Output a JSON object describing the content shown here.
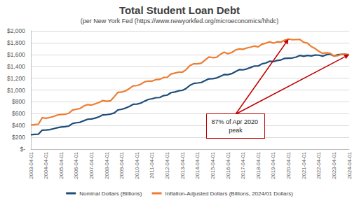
{
  "chart_data": {
    "type": "line",
    "title": "Total Student Loan Debt",
    "subtitle": "(per New York Fed (https://www.newyorkfed.org/microeconomics/hhdc)",
    "annotation": "87% of Apr 2020 peak",
    "categories": [
      "2003-04-01",
      null,
      null,
      null,
      "2004-04-01",
      null,
      null,
      null,
      "2005-04-01",
      null,
      null,
      null,
      "2006-04-01",
      null,
      null,
      null,
      "2007-04-01",
      null,
      null,
      null,
      "2008-04-01",
      null,
      null,
      null,
      "2009-04-01",
      null,
      null,
      null,
      "2010-04-01",
      null,
      null,
      null,
      "2011-04-01",
      null,
      null,
      null,
      "2012-04-01",
      null,
      null,
      null,
      "2013-04-01",
      null,
      null,
      null,
      "2014-04-01",
      null,
      null,
      null,
      "2015-04-01",
      null,
      null,
      null,
      "2016-04-01",
      null,
      null,
      null,
      "2017-04-01",
      null,
      null,
      null,
      "2018-04-01",
      null,
      null,
      null,
      "2019-04-01",
      null,
      null,
      null,
      "2020-04-01",
      null,
      null,
      null,
      "2021-04-01",
      null,
      null,
      null,
      "2022-04-01",
      null,
      null,
      null,
      "2023-04-01",
      null,
      null,
      null,
      "2024-04-01"
    ],
    "series": [
      {
        "name": "Nominal Dollars (Billions)",
        "color": "#1f4e79",
        "values": [
          243,
          249,
          253,
          322,
          323,
          330,
          346,
          363,
          374,
          380,
          391,
          433,
          447,
          455,
          481,
          506,
          510,
          525,
          548,
          579,
          583,
          593,
          611,
          663,
          675,
          694,
          722,
          758,
          762,
          778,
          812,
          840,
          852,
          870,
          873,
          904,
          914,
          956,
          966,
          986,
          994,
          1027,
          1080,
          1111,
          1118,
          1127,
          1159,
          1189,
          1190,
          1203,
          1232,
          1261,
          1259,
          1276,
          1310,
          1344,
          1340,
          1357,
          1380,
          1405,
          1406,
          1442,
          1456,
          1486,
          1480,
          1499,
          1508,
          1535,
          1538,
          1541,
          1556,
          1584,
          1570,
          1585,
          1576,
          1590,
          1589,
          1572,
          1596,
          1604,
          1573,
          1597,
          1601,
          1602,
          1595
        ]
      },
      {
        "name": "Inflation-Adjusted Dollars (Billions, 2024/01 Dollars)",
        "color": "#ed7d31",
        "values": [
          408,
          416,
          423,
          531,
          523,
          535,
          554,
          577,
          587,
          589,
          606,
          662,
          675,
          687,
          731,
          754,
          745,
          767,
          789,
          822,
          810,
          818,
          886,
          961,
          965,
          985,
          1025,
          1069,
          1074,
          1097,
          1137,
          1151,
          1150,
          1175,
          1179,
          1211,
          1216,
          1271,
          1285,
          1302,
          1302,
          1345,
          1415,
          1444,
          1442,
          1454,
          1507,
          1558,
          1547,
          1552,
          1602,
          1639,
          1612,
          1633,
          1677,
          1693,
          1688,
          1710,
          1725,
          1742,
          1729,
          1774,
          1791,
          1813,
          1791,
          1814,
          1810,
          1842,
          1861,
          1849,
          1852,
          1853,
          1806,
          1791,
          1734,
          1701,
          1653,
          1619,
          1628,
          1620,
          1573,
          1581,
          1601,
          1602,
          1600
        ]
      }
    ],
    "ylim": [
      0,
      2000
    ],
    "yticks": [
      {
        "value": 0,
        "label": "$-"
      },
      {
        "value": 200,
        "label": "$200"
      },
      {
        "value": 400,
        "label": "$400"
      },
      {
        "value": 600,
        "label": "$600"
      },
      {
        "value": 800,
        "label": "$800"
      },
      {
        "value": 1000,
        "label": "$1,000"
      },
      {
        "value": 1200,
        "label": "$1,200"
      },
      {
        "value": 1400,
        "label": "$1,400"
      },
      {
        "value": 1600,
        "label": "$1,600"
      },
      {
        "value": 1800,
        "label": "$1,800"
      },
      {
        "value": 2000,
        "label": "$2,000"
      }
    ],
    "grid": true,
    "legend": "bottom"
  }
}
